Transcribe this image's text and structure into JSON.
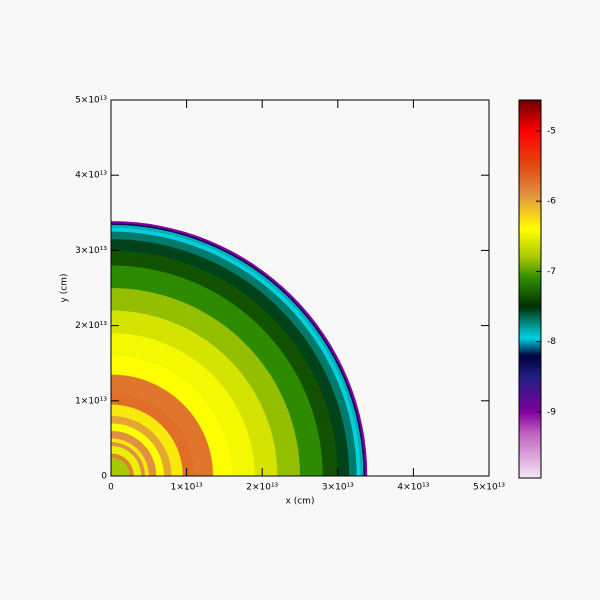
{
  "chart_data": {
    "type": "radial-map",
    "xlabel": "x (cm)",
    "ylabel": "y (cm)",
    "xlim": [
      0,
      50000000000000.0
    ],
    "ylim": [
      0,
      50000000000000.0
    ],
    "xticks": [
      0,
      {
        "value": 10000000000000.0,
        "label": "1×10¹³"
      },
      {
        "value": 20000000000000.0,
        "label": "2×10¹³"
      },
      {
        "value": 30000000000000.0,
        "label": "3×10¹³"
      },
      {
        "value": 40000000000000.0,
        "label": "4×10¹³"
      },
      {
        "value": 50000000000000.0,
        "label": "5×10¹³"
      }
    ],
    "yticks": [
      0,
      {
        "value": 10000000000000.0,
        "label": "1×10¹³"
      },
      {
        "value": 20000000000000.0,
        "label": "2×10¹³"
      },
      {
        "value": 30000000000000.0,
        "label": "3×10¹³"
      },
      {
        "value": 40000000000000.0,
        "label": "4×10¹³"
      },
      {
        "value": 50000000000000.0,
        "label": "5×10¹³"
      }
    ],
    "profile_r": [
      2500000000000.0,
      3000000000000.0,
      4000000000000.0,
      4500000000000.0,
      5000000000000.0,
      6000000000000.0,
      7000000000000.0,
      8000000000000.0,
      9500000000000.0,
      11000000000000.0,
      13500000000000.0,
      16000000000000.0,
      19000000000000.0,
      22000000000000.0,
      25000000000000.0,
      28000000000000.0,
      30000000000000.0,
      31500000000000.0,
      32500000000000.0,
      33000000000000.0,
      33400000000000.0,
      33600000000000.0,
      33900000000000.0
    ],
    "profile_values": [
      -6.8,
      -5.8,
      -6.5,
      -5.9,
      -6.3,
      -5.9,
      -6.4,
      -6.0,
      -6.3,
      -5.7,
      -5.75,
      -6.4,
      -6.45,
      -6.6,
      -6.85,
      -7.1,
      -7.35,
      -7.55,
      -7.7,
      -7.95,
      -7.85,
      -8.3,
      -9.0
    ],
    "clim": [
      -9.94,
      -4.56
    ],
    "cticks": [
      -5,
      -6,
      -7,
      -8,
      -9
    ],
    "colormap": [
      {
        "value": -4.56,
        "color": "#6b0000"
      },
      {
        "value": -5.0,
        "color": "#ff0000"
      },
      {
        "value": -5.5,
        "color": "#e04a10"
      },
      {
        "value": -5.9,
        "color": "#e09040"
      },
      {
        "value": -6.4,
        "color": "#ffff00"
      },
      {
        "value": -6.8,
        "color": "#a8c800"
      },
      {
        "value": -7.1,
        "color": "#2e8b00"
      },
      {
        "value": -7.5,
        "color": "#003000"
      },
      {
        "value": -7.8,
        "color": "#00a0a0"
      },
      {
        "value": -7.95,
        "color": "#00d0e0"
      },
      {
        "value": -8.2,
        "color": "#000040"
      },
      {
        "value": -8.5,
        "color": "#202080"
      },
      {
        "value": -9.0,
        "color": "#8000a0"
      },
      {
        "value": -9.3,
        "color": "#c060c0"
      },
      {
        "value": -9.94,
        "color": "#f4e8f4"
      }
    ]
  }
}
